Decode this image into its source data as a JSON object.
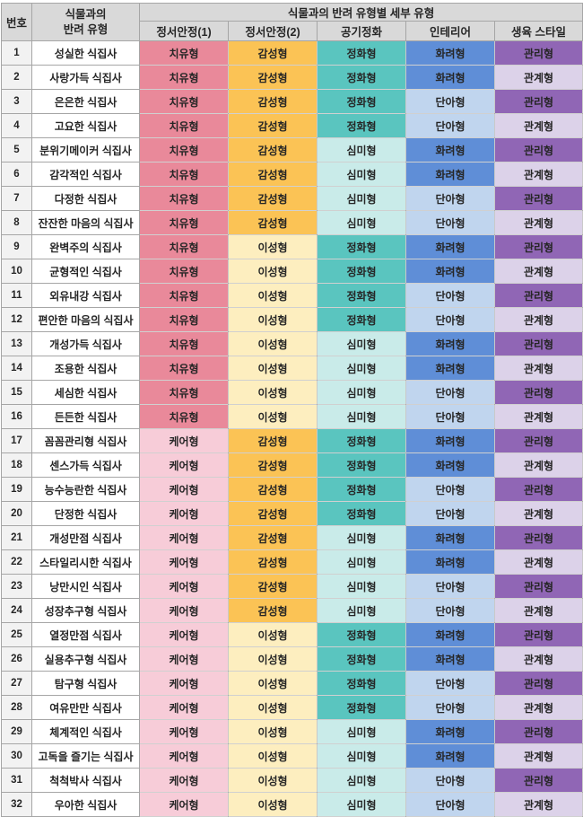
{
  "table": {
    "header": {
      "no": "번호",
      "companion_type": "식물과의\n반려 유형",
      "detail_group": "식물과의 반려 유형별 세부 유형",
      "subheaders": [
        "정서안정(1)",
        "정서안정(2)",
        "공기정화",
        "인테리어",
        "생육 스타일"
      ]
    },
    "rows": [
      {
        "no": "1",
        "name": "성실한 식집사",
        "values": [
          "치유형",
          "감성형",
          "정화형",
          "화려형",
          "관리형"
        ]
      },
      {
        "no": "2",
        "name": "사랑가득 식집사",
        "values": [
          "치유형",
          "감성형",
          "정화형",
          "화려형",
          "관계형"
        ]
      },
      {
        "no": "3",
        "name": "은은한 식집사",
        "values": [
          "치유형",
          "감성형",
          "정화형",
          "단아형",
          "관리형"
        ]
      },
      {
        "no": "4",
        "name": "고요한 식집사",
        "values": [
          "치유형",
          "감성형",
          "정화형",
          "단아형",
          "관계형"
        ]
      },
      {
        "no": "5",
        "name": "분위기메이커 식집사",
        "values": [
          "치유형",
          "감성형",
          "심미형",
          "화려형",
          "관리형"
        ]
      },
      {
        "no": "6",
        "name": "감각적인 식집사",
        "values": [
          "치유형",
          "감성형",
          "심미형",
          "화려형",
          "관계형"
        ]
      },
      {
        "no": "7",
        "name": "다정한 식집사",
        "values": [
          "치유형",
          "감성형",
          "심미형",
          "단아형",
          "관리형"
        ]
      },
      {
        "no": "8",
        "name": "잔잔한 마음의 식집사",
        "values": [
          "치유형",
          "감성형",
          "심미형",
          "단아형",
          "관계형"
        ]
      },
      {
        "no": "9",
        "name": "완벽주의 식집사",
        "values": [
          "치유형",
          "이성형",
          "정화형",
          "화려형",
          "관리형"
        ]
      },
      {
        "no": "10",
        "name": "균형적인 식집사",
        "values": [
          "치유형",
          "이성형",
          "정화형",
          "화려형",
          "관계형"
        ]
      },
      {
        "no": "11",
        "name": "외유내강 식집사",
        "values": [
          "치유형",
          "이성형",
          "정화형",
          "단아형",
          "관리형"
        ]
      },
      {
        "no": "12",
        "name": "편안한 마음의 식집사",
        "values": [
          "치유형",
          "이성형",
          "정화형",
          "단아형",
          "관계형"
        ]
      },
      {
        "no": "13",
        "name": "개성가득 식집사",
        "values": [
          "치유형",
          "이성형",
          "심미형",
          "화려형",
          "관리형"
        ]
      },
      {
        "no": "14",
        "name": "조용한 식집사",
        "values": [
          "치유형",
          "이성형",
          "심미형",
          "화려형",
          "관계형"
        ]
      },
      {
        "no": "15",
        "name": "세심한 식집사",
        "values": [
          "치유형",
          "이성형",
          "심미형",
          "단아형",
          "관리형"
        ]
      },
      {
        "no": "16",
        "name": "든든한 식집사",
        "values": [
          "치유형",
          "이성형",
          "심미형",
          "단아형",
          "관계형"
        ]
      },
      {
        "no": "17",
        "name": "꼼꼼관리형 식집사",
        "values": [
          "케어형",
          "감성형",
          "정화형",
          "화려형",
          "관리형"
        ]
      },
      {
        "no": "18",
        "name": "센스가득 식집사",
        "values": [
          "케어형",
          "감성형",
          "정화형",
          "화려형",
          "관계형"
        ]
      },
      {
        "no": "19",
        "name": "능수능란한 식집사",
        "values": [
          "케어형",
          "감성형",
          "정화형",
          "단아형",
          "관리형"
        ]
      },
      {
        "no": "20",
        "name": "단정한 식집사",
        "values": [
          "케어형",
          "감성형",
          "정화형",
          "단아형",
          "관계형"
        ]
      },
      {
        "no": "21",
        "name": "개성만점 식집사",
        "values": [
          "케어형",
          "감성형",
          "심미형",
          "화려형",
          "관리형"
        ]
      },
      {
        "no": "22",
        "name": "스타일리시한 식집사",
        "values": [
          "케어형",
          "감성형",
          "심미형",
          "화려형",
          "관계형"
        ]
      },
      {
        "no": "23",
        "name": "낭만시인 식집사",
        "values": [
          "케어형",
          "감성형",
          "심미형",
          "단아형",
          "관리형"
        ]
      },
      {
        "no": "24",
        "name": "성장추구형 식집사",
        "values": [
          "케어형",
          "감성형",
          "심미형",
          "단아형",
          "관계형"
        ]
      },
      {
        "no": "25",
        "name": "열정만점 식집사",
        "values": [
          "케어형",
          "이성형",
          "정화형",
          "화려형",
          "관리형"
        ]
      },
      {
        "no": "26",
        "name": "실용추구형 식집사",
        "values": [
          "케어형",
          "이성형",
          "정화형",
          "화려형",
          "관계형"
        ]
      },
      {
        "no": "27",
        "name": "탐구형 식집사",
        "values": [
          "케어형",
          "이성형",
          "정화형",
          "단아형",
          "관리형"
        ]
      },
      {
        "no": "28",
        "name": "여유만만 식집사",
        "values": [
          "케어형",
          "이성형",
          "정화형",
          "단아형",
          "관계형"
        ]
      },
      {
        "no": "29",
        "name": "체계적인 식집사",
        "values": [
          "케어형",
          "이성형",
          "심미형",
          "화려형",
          "관리형"
        ]
      },
      {
        "no": "30",
        "name": "고독을 즐기는 식집사",
        "values": [
          "케어형",
          "이성형",
          "심미형",
          "화려형",
          "관계형"
        ]
      },
      {
        "no": "31",
        "name": "척척박사 식집사",
        "values": [
          "케어형",
          "이성형",
          "심미형",
          "단아형",
          "관리형"
        ]
      },
      {
        "no": "32",
        "name": "우아한 식집사",
        "values": [
          "케어형",
          "이성형",
          "심미형",
          "단아형",
          "관계형"
        ]
      }
    ]
  },
  "palette": {
    "치유형": "#e9899a",
    "케어형": "#f7ccd8",
    "감성형": "#fbc355",
    "이성형": "#fdeebf",
    "정화형": "#5ac5bf",
    "심미형": "#c9ebe9",
    "화려형": "#5f8ed7",
    "단아형": "#c0d5ee",
    "관리형": "#9066b5",
    "관계형": "#dcd2e9"
  },
  "style_colors": {
    "header_bg": "#d9d9d9",
    "number_bg": "#f2f2f2",
    "name_bg": "#ffffff",
    "border": "#a6a6a6",
    "text": "#262626"
  }
}
